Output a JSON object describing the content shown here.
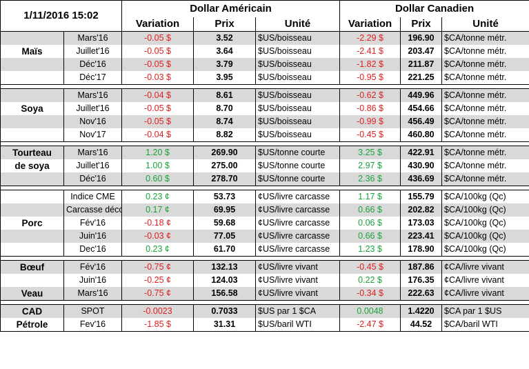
{
  "header": {
    "datetime": "1/11/2016 15:02",
    "usd_group": "Dollar Américain",
    "cad_group": "Dollar Canadien",
    "col_variation": "Variation",
    "col_prix": "Prix",
    "col_unite": "Unité"
  },
  "rows": [
    {
      "cat": "",
      "m": "Mars'16",
      "uv": "-0.05 $",
      "up": "3.52",
      "uu": "$US/boisseau",
      "cv": "-2.29 $",
      "cp": "196.90",
      "cu": "$CA/tonne métr.",
      "uc": "red",
      "cc": "red",
      "bg": "g"
    },
    {
      "cat": "Maïs",
      "m": "Juillet'16",
      "uv": "-0.05 $",
      "up": "3.64",
      "uu": "$US/boisseau",
      "cv": "-2.41 $",
      "cp": "203.47",
      "cu": "$CA/tonne métr.",
      "uc": "red",
      "cc": "red",
      "bg": "w"
    },
    {
      "cat": "",
      "m": "Déc'16",
      "uv": "-0.05 $",
      "up": "3.79",
      "uu": "$US/boisseau",
      "cv": "-1.82 $",
      "cp": "211.87",
      "cu": "$CA/tonne métr.",
      "uc": "red",
      "cc": "red",
      "bg": "g"
    },
    {
      "cat": "",
      "m": "Déc'17",
      "uv": "-0.03 $",
      "up": "3.95",
      "uu": "$US/boisseau",
      "cv": "-0.95 $",
      "cp": "221.25",
      "cu": "$CA/tonne métr.",
      "uc": "red",
      "cc": "red",
      "bg": "w"
    },
    {
      "sep": true
    },
    {
      "cat": "",
      "m": "Mars'16",
      "uv": "-0.04 $",
      "up": "8.61",
      "uu": "$US/boisseau",
      "cv": "-0.62 $",
      "cp": "449.96",
      "cu": "$CA/tonne métr.",
      "uc": "red",
      "cc": "red",
      "bg": "g"
    },
    {
      "cat": "Soya",
      "m": "Juillet'16",
      "uv": "-0.05 $",
      "up": "8.70",
      "uu": "$US/boisseau",
      "cv": "-0.86 $",
      "cp": "454.66",
      "cu": "$CA/tonne métr.",
      "uc": "red",
      "cc": "red",
      "bg": "w"
    },
    {
      "cat": "",
      "m": "Nov'16",
      "uv": "-0.05 $",
      "up": "8.74",
      "uu": "$US/boisseau",
      "cv": "-0.99 $",
      "cp": "456.49",
      "cu": "$CA/tonne métr.",
      "uc": "red",
      "cc": "red",
      "bg": "g"
    },
    {
      "cat": "",
      "m": "Nov'17",
      "uv": "-0.04 $",
      "up": "8.82",
      "uu": "$US/boisseau",
      "cv": "-0.45 $",
      "cp": "460.80",
      "cu": "$CA/tonne métr.",
      "uc": "red",
      "cc": "red",
      "bg": "w"
    },
    {
      "sep": true
    },
    {
      "cat": "Tourteau",
      "m": "Mars'16",
      "uv": "1.20 $",
      "up": "269.90",
      "uu": "$US/tonne courte",
      "cv": "3.25 $",
      "cp": "422.91",
      "cu": "$CA/tonne métr.",
      "uc": "green",
      "cc": "green",
      "bg": "g"
    },
    {
      "cat": "de soya",
      "m": "Juillet'16",
      "uv": "1.00 $",
      "up": "275.00",
      "uu": "$US/tonne courte",
      "cv": "2.97 $",
      "cp": "430.90",
      "cu": "$CA/tonne métr.",
      "uc": "green",
      "cc": "green",
      "bg": "w"
    },
    {
      "cat": "",
      "m": "Déc'16",
      "uv": "0.60 $",
      "up": "278.70",
      "uu": "$US/tonne courte",
      "cv": "2.36 $",
      "cp": "436.69",
      "cu": "$CA/tonne métr.",
      "uc": "green",
      "cc": "green",
      "bg": "g"
    },
    {
      "sep": true
    },
    {
      "cat": "",
      "m": "Indice CME",
      "uv": "0.23 ¢",
      "up": "53.73",
      "uu": "¢US/livre carcasse",
      "cv": "1.17 $",
      "cp": "155.79",
      "cu": "$CA/100kg (Qc)",
      "uc": "green",
      "cc": "green",
      "bg": "w"
    },
    {
      "cat": "",
      "m": "Carcasse découpée",
      "uv": "0.17 ¢",
      "up": "69.95",
      "uu": "¢US/livre carcasse",
      "cv": "0.66 $",
      "cp": "202.82",
      "cu": "$CA/100kg (Qc)",
      "uc": "green",
      "cc": "green",
      "bg": "g"
    },
    {
      "cat": "Porc",
      "m": "Fév'16",
      "uv": "-0.18 ¢",
      "up": "59.68",
      "uu": "¢US/livre carcasse",
      "cv": "0.06 $",
      "cp": "173.03",
      "cu": "$CA/100kg (Qc)",
      "uc": "red",
      "cc": "green",
      "bg": "w"
    },
    {
      "cat": "",
      "m": "Juin'16",
      "uv": "-0.03 ¢",
      "up": "77.05",
      "uu": "¢US/livre carcasse",
      "cv": "0.66 $",
      "cp": "223.41",
      "cu": "$CA/100kg (Qc)",
      "uc": "red",
      "cc": "green",
      "bg": "g"
    },
    {
      "cat": "",
      "m": "Dec'16",
      "uv": "0.23 ¢",
      "up": "61.70",
      "uu": "¢US/livre carcasse",
      "cv": "1.23 $",
      "cp": "178.90",
      "cu": "$CA/100kg (Qc)",
      "uc": "green",
      "cc": "green",
      "bg": "w"
    },
    {
      "sep": true
    },
    {
      "cat": "Bœuf",
      "m": "Fév'16",
      "uv": "-0.75 ¢",
      "up": "132.13",
      "uu": "¢US/livre vivant",
      "cv": "-0.45 $",
      "cp": "187.86",
      "cu": "¢CA/livre vivant",
      "uc": "red",
      "cc": "red",
      "bg": "g"
    },
    {
      "cat": "",
      "m": "Juin'16",
      "uv": "-0.25 ¢",
      "up": "124.03",
      "uu": "¢US/livre vivant",
      "cv": "0.22 $",
      "cp": "176.35",
      "cu": "¢CA/livre vivant",
      "uc": "red",
      "cc": "green",
      "bg": "w"
    },
    {
      "cat": "Veau",
      "m": "Mars'16",
      "uv": "-0.75 ¢",
      "up": "156.58",
      "uu": "¢US/livre vivant",
      "cv": "-0.34 $",
      "cp": "222.63",
      "cu": "¢CA/livre vivant",
      "uc": "red",
      "cc": "red",
      "bg": "g"
    },
    {
      "sep": true
    },
    {
      "cat": "CAD",
      "m": "SPOT",
      "uv": "-0.0023",
      "up": "0.7033",
      "uu": "$US par 1 $CA",
      "cv": "0.0048",
      "cp": "1.4220",
      "cu": "$CA par 1 $US",
      "uc": "red",
      "cc": "green",
      "bg": "g"
    },
    {
      "cat": "Pétrole",
      "m": "Fev'16",
      "uv": "-1.85 $",
      "up": "31.31",
      "uu": "$US/baril WTI",
      "cv": "-2.47 $",
      "cp": "44.52",
      "cu": "$CA/baril WTI",
      "uc": "red",
      "cc": "red",
      "bg": "w"
    }
  ],
  "colors": {
    "red": "#e02020",
    "green": "#1aa33a",
    "gray": "#d9d9d9"
  }
}
